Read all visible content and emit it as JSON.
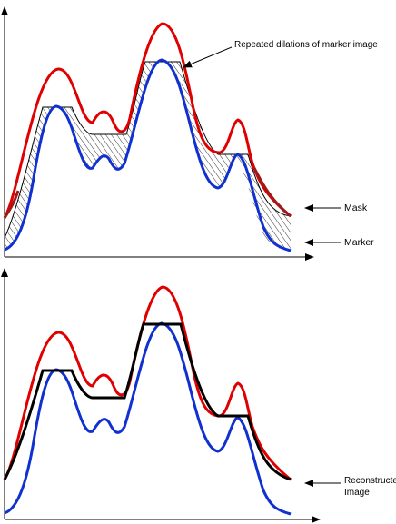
{
  "top_panel": {
    "annotation_dilations": "Repeated dilations of marker image",
    "label_mask": "Mask",
    "label_marker": "Marker"
  },
  "bottom_panel": {
    "label_reconstructed_line1": "Reconstructed",
    "label_reconstructed_line2": "Image"
  },
  "colors": {
    "mask": "#e00000",
    "mask_dark": "#a01818",
    "marker": "#1030d0",
    "reconstructed": "#000000",
    "hatch": "#000000",
    "axis": "#000000"
  }
}
